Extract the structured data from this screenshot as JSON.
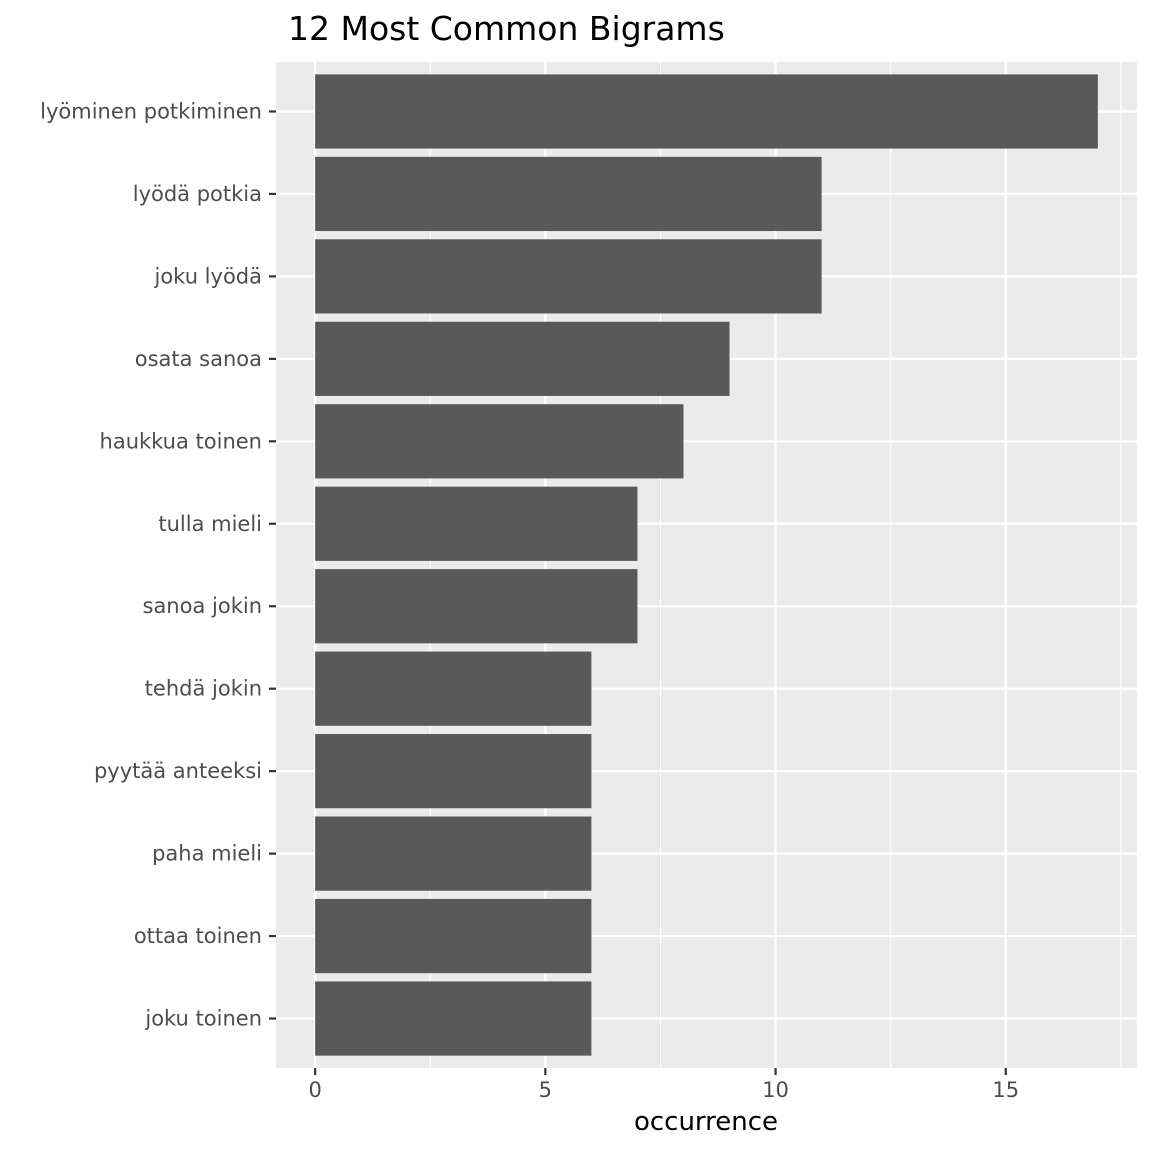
{
  "chart_data": {
    "type": "bar",
    "orientation": "horizontal",
    "title": "12 Most Common Bigrams",
    "xlabel": "occurrence",
    "ylabel": "",
    "categories": [
      "lyöminen potkiminen",
      "lyödä potkia",
      "joku lyödä",
      "osata sanoa",
      "haukkua toinen",
      "tulla mieli",
      "sanoa jokin",
      "tehdä jokin",
      "pyytää anteeksi",
      "paha mieli",
      "ottaa toinen",
      "joku toinen"
    ],
    "values": [
      17,
      11,
      11,
      9,
      8,
      7,
      7,
      6,
      6,
      6,
      6,
      6
    ],
    "xlim": [
      -0.85,
      17.85
    ],
    "x_ticks": [
      0,
      5,
      10,
      15
    ],
    "x_tick_labels": [
      "0",
      "5",
      "10",
      "15"
    ],
    "grid": true,
    "legend": "none",
    "colors": {
      "bar": "#595959",
      "panel_background": "#ebebeb",
      "gridline": "#ffffff",
      "tick_label": "#4d4d4d",
      "tick_mark": "#333333"
    }
  }
}
